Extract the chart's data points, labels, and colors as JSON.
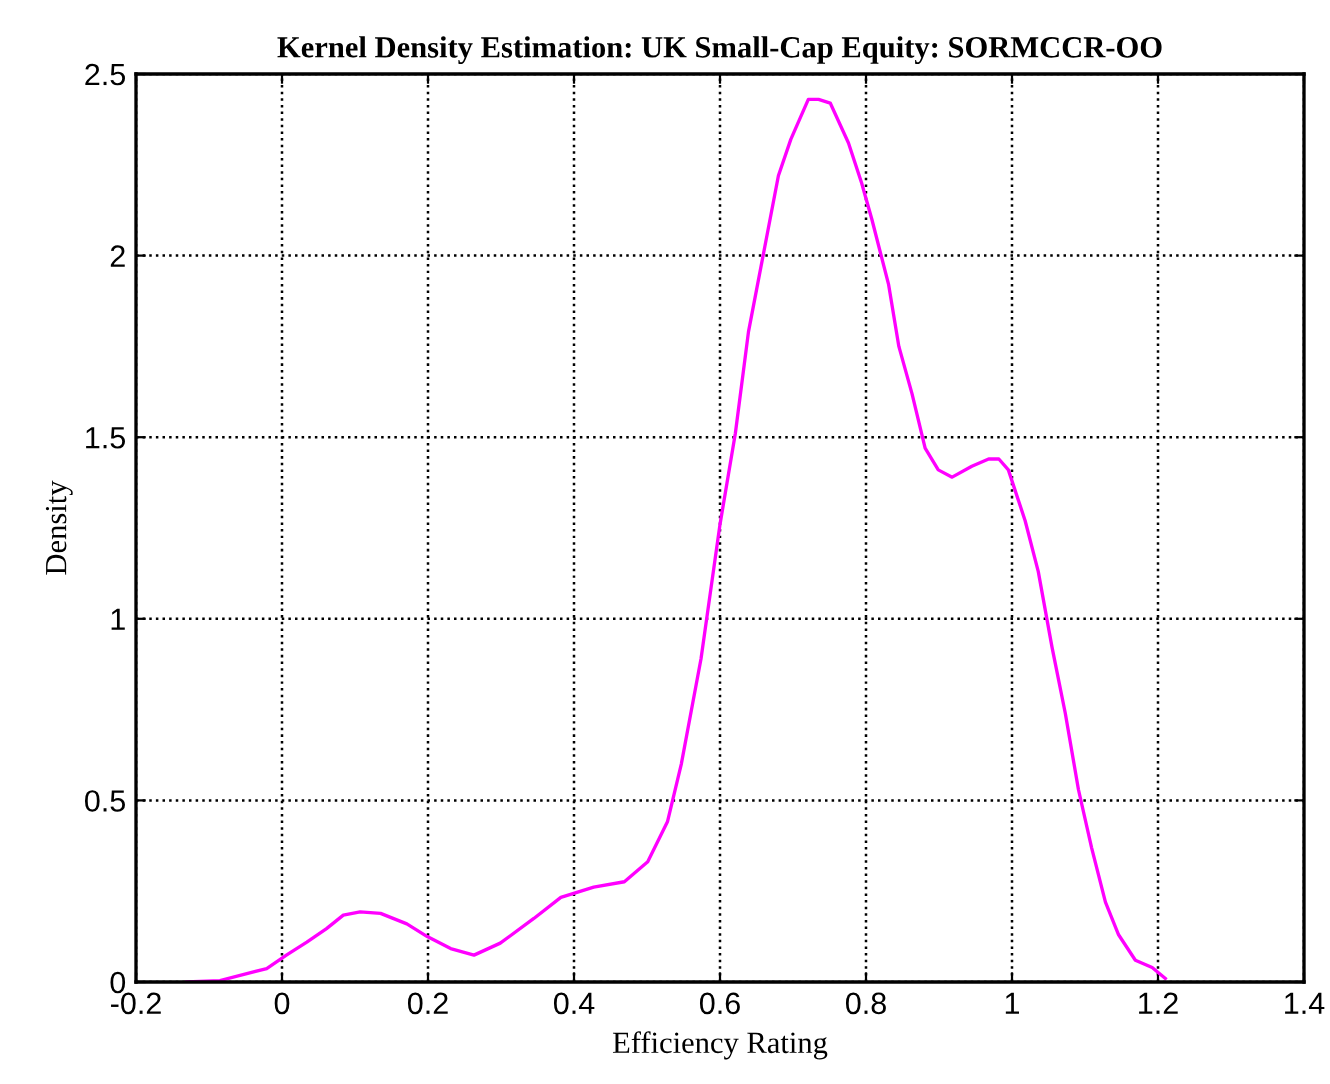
{
  "chart_data": {
    "type": "line",
    "title": "Kernel Density Estimation: UK Small-Cap Equity: SORMCCR-OO",
    "xlabel": "Efficiency Rating",
    "ylabel": "Density",
    "xlim": [
      -0.2,
      1.4
    ],
    "xticks": [
      {
        "value": -0.2,
        "label": "-0.2"
      },
      0,
      0.2,
      0.4,
      0.6,
      0.8,
      1,
      1.2,
      1.4
    ],
    "ylim": [
      0,
      2.5
    ],
    "yticks": [
      0,
      0.5,
      1,
      1.5,
      2,
      2.5
    ],
    "grid": true,
    "legend": false,
    "marker": "none",
    "line_style": "solid",
    "series": [
      {
        "color": "#ff00ff",
        "x": [
          -0.131,
          -0.085,
          -0.021,
          0.006,
          0.034,
          0.061,
          0.084,
          0.107,
          0.135,
          0.171,
          0.199,
          0.231,
          0.263,
          0.299,
          0.345,
          0.382,
          0.427,
          0.469,
          0.501,
          0.528,
          0.547,
          0.574,
          0.6,
          0.621,
          0.639,
          0.66,
          0.68,
          0.697,
          0.721,
          0.735,
          0.751,
          0.776,
          0.794,
          0.808,
          0.831,
          0.845,
          0.863,
          0.881,
          0.899,
          0.918,
          0.945,
          0.968,
          0.982,
          0.995,
          1.018,
          1.036,
          1.055,
          1.073,
          1.091,
          1.109,
          1.128,
          1.146,
          1.169,
          1.192,
          1.21
        ],
        "values": [
          0,
          0.004,
          0.037,
          0.074,
          0.11,
          0.147,
          0.184,
          0.193,
          0.189,
          0.16,
          0.125,
          0.092,
          0.074,
          0.107,
          0.175,
          0.233,
          0.261,
          0.276,
          0.331,
          0.441,
          0.6,
          0.89,
          1.26,
          1.51,
          1.79,
          2.01,
          2.22,
          2.32,
          2.43,
          2.43,
          2.42,
          2.31,
          2.2,
          2.1,
          1.92,
          1.75,
          1.62,
          1.47,
          1.41,
          1.39,
          1.42,
          1.44,
          1.44,
          1.41,
          1.27,
          1.13,
          0.92,
          0.74,
          0.53,
          0.37,
          0.22,
          0.13,
          0.06,
          0.04,
          0.01
        ]
      }
    ]
  }
}
